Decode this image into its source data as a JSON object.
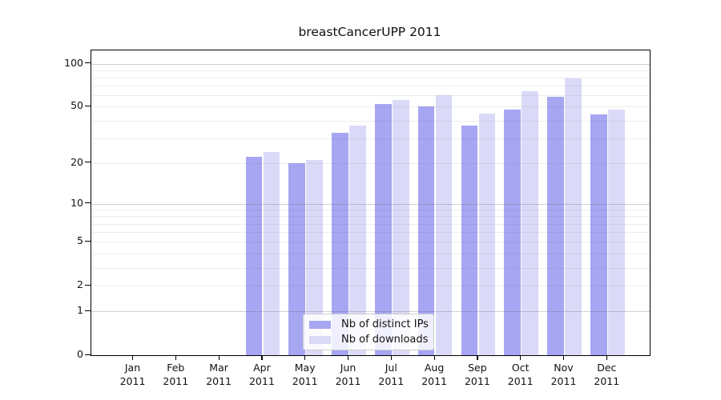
{
  "title": "breastCancerUPP 2011",
  "chart_data": {
    "type": "bar",
    "title": "breastCancerUPP 2011",
    "categories": [
      "Jan",
      "Feb",
      "Mar",
      "Apr",
      "May",
      "Jun",
      "Jul",
      "Aug",
      "Sep",
      "Oct",
      "Nov",
      "Dec"
    ],
    "x_year": "2011",
    "series": [
      {
        "name": "Nb of distinct IPs",
        "color": "#a6a6f2",
        "values": [
          0,
          0,
          0,
          22,
          20,
          33,
          52,
          50,
          37,
          48,
          59,
          44
        ]
      },
      {
        "name": "Nb of downloads",
        "color": "#dadaf8",
        "values": [
          0,
          0,
          0,
          24,
          21,
          37,
          56,
          60,
          45,
          64,
          79,
          48
        ]
      }
    ],
    "scale": "log1p",
    "ylim": [
      0,
      123.5
    ],
    "y_ticks": [
      0,
      1,
      2,
      5,
      10,
      20,
      50,
      100
    ],
    "major_gridlines": [
      1,
      10,
      100
    ],
    "minor_gridlines": [
      2,
      3,
      4,
      5,
      6,
      7,
      8,
      9,
      20,
      30,
      40,
      50,
      60,
      70,
      80,
      90
    ],
    "grid": true,
    "legend_position": "lower center",
    "axis_color": "#000000",
    "background_color": "#ffffff"
  }
}
